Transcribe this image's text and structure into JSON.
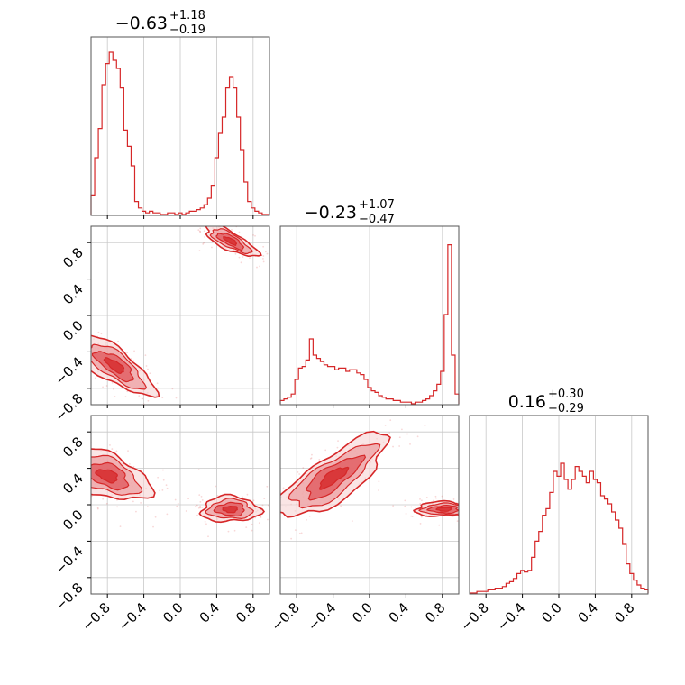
{
  "colors": {
    "accent": "#d62728",
    "fill_light": "#f6d3d4",
    "fill_mid": "#ec9fa1",
    "fill_dark": "#e0575b",
    "grid": "#c8c8c8"
  },
  "chart_data": {
    "type": "corner",
    "grid": true,
    "tick_values": [
      -0.8,
      -0.4,
      0.0,
      0.4,
      0.8
    ],
    "tick_labels": [
      "−0.8",
      "−0.4",
      "0.0",
      "0.4",
      "0.8"
    ],
    "ranges": [
      [
        -0.98,
        0.98
      ],
      [
        -0.98,
        0.98
      ],
      [
        -0.98,
        0.98
      ]
    ],
    "titles": [
      {
        "median": "−0.63",
        "plus": "+1.18",
        "minus": "−0.19"
      },
      {
        "median": "−0.23",
        "plus": "+1.07",
        "minus": "−0.47"
      },
      {
        "median": "0.16",
        "plus": "+0.30",
        "minus": "−0.29"
      }
    ],
    "histograms": [
      {
        "x": [
          -0.96,
          -0.92,
          -0.88,
          -0.84,
          -0.8,
          -0.76,
          -0.72,
          -0.68,
          -0.64,
          -0.6,
          -0.56,
          -0.52,
          -0.48,
          -0.44,
          -0.4,
          -0.36,
          -0.32,
          -0.28,
          -0.24,
          -0.2,
          -0.16,
          -0.12,
          -0.08,
          -0.04,
          0.0,
          0.04,
          0.08,
          0.12,
          0.16,
          0.2,
          0.24,
          0.28,
          0.32,
          0.36,
          0.4,
          0.44,
          0.48,
          0.52,
          0.56,
          0.6,
          0.64,
          0.68,
          0.72,
          0.76,
          0.8,
          0.84,
          0.88,
          0.92,
          0.96
        ],
        "values": [
          0.12,
          0.35,
          0.53,
          0.8,
          0.93,
          1.0,
          0.95,
          0.9,
          0.78,
          0.52,
          0.42,
          0.3,
          0.08,
          0.04,
          0.02,
          0.01,
          0.02,
          0.01,
          0.01,
          0.0,
          0.0,
          0.01,
          0.01,
          0.0,
          0.01,
          0.0,
          0.01,
          0.02,
          0.02,
          0.03,
          0.04,
          0.06,
          0.1,
          0.18,
          0.35,
          0.5,
          0.6,
          0.78,
          0.85,
          0.78,
          0.6,
          0.4,
          0.2,
          0.08,
          0.04,
          0.02,
          0.01,
          0.0,
          0.0
        ]
      },
      {
        "x": [
          -0.96,
          -0.92,
          -0.88,
          -0.84,
          -0.8,
          -0.76,
          -0.72,
          -0.68,
          -0.64,
          -0.6,
          -0.56,
          -0.52,
          -0.48,
          -0.44,
          -0.4,
          -0.36,
          -0.32,
          -0.28,
          -0.24,
          -0.2,
          -0.16,
          -0.12,
          -0.08,
          -0.04,
          0.0,
          0.04,
          0.08,
          0.12,
          0.16,
          0.2,
          0.24,
          0.28,
          0.32,
          0.36,
          0.4,
          0.44,
          0.48,
          0.52,
          0.56,
          0.6,
          0.64,
          0.68,
          0.72,
          0.76,
          0.8,
          0.84,
          0.88,
          0.92,
          0.96
        ],
        "values": [
          0.02,
          0.03,
          0.04,
          0.06,
          0.15,
          0.22,
          0.23,
          0.27,
          0.4,
          0.3,
          0.28,
          0.26,
          0.24,
          0.23,
          0.23,
          0.21,
          0.22,
          0.22,
          0.2,
          0.21,
          0.21,
          0.19,
          0.18,
          0.15,
          0.1,
          0.08,
          0.07,
          0.05,
          0.04,
          0.03,
          0.03,
          0.02,
          0.02,
          0.01,
          0.01,
          0.01,
          0.0,
          0.01,
          0.01,
          0.02,
          0.03,
          0.05,
          0.08,
          0.12,
          0.2,
          0.55,
          0.98,
          0.3,
          0.06
        ]
      },
      {
        "x": [
          -0.96,
          -0.92,
          -0.88,
          -0.84,
          -0.8,
          -0.76,
          -0.72,
          -0.68,
          -0.64,
          -0.6,
          -0.56,
          -0.52,
          -0.48,
          -0.44,
          -0.4,
          -0.36,
          -0.32,
          -0.28,
          -0.24,
          -0.2,
          -0.16,
          -0.12,
          -0.08,
          -0.04,
          0.0,
          0.04,
          0.08,
          0.12,
          0.16,
          0.2,
          0.24,
          0.28,
          0.32,
          0.36,
          0.4,
          0.44,
          0.48,
          0.52,
          0.56,
          0.6,
          0.64,
          0.68,
          0.72,
          0.76,
          0.8,
          0.84,
          0.88,
          0.92,
          0.96
        ],
        "values": [
          0.0,
          0.0,
          0.01,
          0.01,
          0.01,
          0.02,
          0.02,
          0.03,
          0.03,
          0.04,
          0.06,
          0.07,
          0.09,
          0.12,
          0.14,
          0.13,
          0.14,
          0.22,
          0.32,
          0.38,
          0.48,
          0.52,
          0.62,
          0.75,
          0.72,
          0.8,
          0.7,
          0.64,
          0.7,
          0.78,
          0.75,
          0.72,
          0.68,
          0.75,
          0.7,
          0.68,
          0.6,
          0.58,
          0.55,
          0.5,
          0.45,
          0.4,
          0.3,
          0.18,
          0.12,
          0.08,
          0.05,
          0.03,
          0.02
        ]
      }
    ],
    "density_2d": [
      {
        "panel": "x1 vs x0",
        "modes": [
          {
            "cx": -0.72,
            "cy": -0.55,
            "sx": 0.09,
            "sy": 0.25,
            "angle_deg": 55,
            "weight": 1.0
          },
          {
            "cx": 0.55,
            "cy": 0.82,
            "sx": 0.16,
            "sy": 0.05,
            "angle_deg": -28,
            "weight": 0.85
          }
        ]
      },
      {
        "panel": "x2 vs x0",
        "modes": [
          {
            "cx": -0.8,
            "cy": 0.32,
            "sx": 0.12,
            "sy": 0.24,
            "angle_deg": 70,
            "weight": 1.0
          },
          {
            "cx": 0.55,
            "cy": -0.05,
            "sx": 0.07,
            "sy": 0.16,
            "angle_deg": 90,
            "weight": 0.7
          }
        ]
      },
      {
        "panel": "x2 vs x1",
        "modes": [
          {
            "cx": -0.4,
            "cy": 0.3,
            "sx": 0.36,
            "sy": 0.12,
            "angle_deg": 35,
            "weight": 1.0
          },
          {
            "cx": 0.82,
            "cy": -0.05,
            "sx": 0.04,
            "sy": 0.16,
            "angle_deg": 90,
            "weight": 0.7
          }
        ]
      }
    ]
  }
}
